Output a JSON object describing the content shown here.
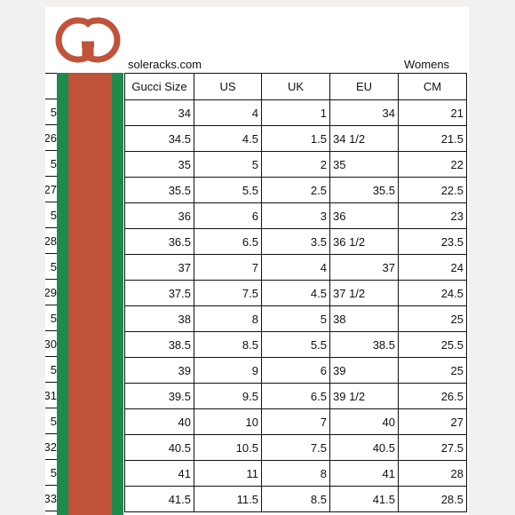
{
  "header": {
    "site": "soleracks.com",
    "gender": "Womens"
  },
  "logo": {
    "name": "gucci-interlocking-g-logo",
    "color": "#c0533a"
  },
  "stripe_colors": {
    "green": "#1e8a4c",
    "red": "#c0533a"
  },
  "table": {
    "columns": [
      "Gucci Size",
      "US",
      "UK",
      "EU",
      "CM"
    ],
    "rows": [
      {
        "edge": "5",
        "gucci": "34",
        "us": "4",
        "uk": "1",
        "eu": "34",
        "eu_align": "right",
        "cm": "21"
      },
      {
        "edge": "26",
        "gucci": "34.5",
        "us": "4.5",
        "uk": "1.5",
        "eu": "34 1/2",
        "eu_align": "left",
        "cm": "21.5"
      },
      {
        "edge": "5",
        "gucci": "35",
        "us": "5",
        "uk": "2",
        "eu": "35",
        "eu_align": "left",
        "cm": "22"
      },
      {
        "edge": "27",
        "gucci": "35.5",
        "us": "5.5",
        "uk": "2.5",
        "eu": "35.5",
        "eu_align": "right",
        "cm": "22.5"
      },
      {
        "edge": "5",
        "gucci": "36",
        "us": "6",
        "uk": "3",
        "eu": "36",
        "eu_align": "left",
        "cm": "23"
      },
      {
        "edge": "28",
        "gucci": "36.5",
        "us": "6.5",
        "uk": "3.5",
        "eu": "36 1/2",
        "eu_align": "left",
        "cm": "23.5"
      },
      {
        "edge": "5",
        "gucci": "37",
        "us": "7",
        "uk": "4",
        "eu": "37",
        "eu_align": "right",
        "cm": "24"
      },
      {
        "edge": "29",
        "gucci": "37.5",
        "us": "7.5",
        "uk": "4.5",
        "eu": "37 1/2",
        "eu_align": "left",
        "cm": "24.5"
      },
      {
        "edge": "5",
        "gucci": "38",
        "us": "8",
        "uk": "5",
        "eu": "38",
        "eu_align": "left",
        "cm": "25"
      },
      {
        "edge": "30",
        "gucci": "38.5",
        "us": "8.5",
        "uk": "5.5",
        "eu": "38.5",
        "eu_align": "right",
        "cm": "25.5"
      },
      {
        "edge": "5",
        "gucci": "39",
        "us": "9",
        "uk": "6",
        "eu": "39",
        "eu_align": "left",
        "cm": "25"
      },
      {
        "edge": "31",
        "gucci": "39.5",
        "us": "9.5",
        "uk": "6.5",
        "eu": "39 1/2",
        "eu_align": "left",
        "cm": "26.5"
      },
      {
        "edge": "5",
        "gucci": "40",
        "us": "10",
        "uk": "7",
        "eu": "40",
        "eu_align": "right",
        "cm": "27"
      },
      {
        "edge": "32",
        "gucci": "40.5",
        "us": "10.5",
        "uk": "7.5",
        "eu": "40.5",
        "eu_align": "right",
        "cm": "27.5"
      },
      {
        "edge": "5",
        "gucci": "41",
        "us": "11",
        "uk": "8",
        "eu": "41",
        "eu_align": "right",
        "cm": "28"
      },
      {
        "edge": "33",
        "gucci": "41.5",
        "us": "11.5",
        "uk": "8.5",
        "eu": "41.5",
        "eu_align": "right",
        "cm": "28.5"
      }
    ]
  }
}
